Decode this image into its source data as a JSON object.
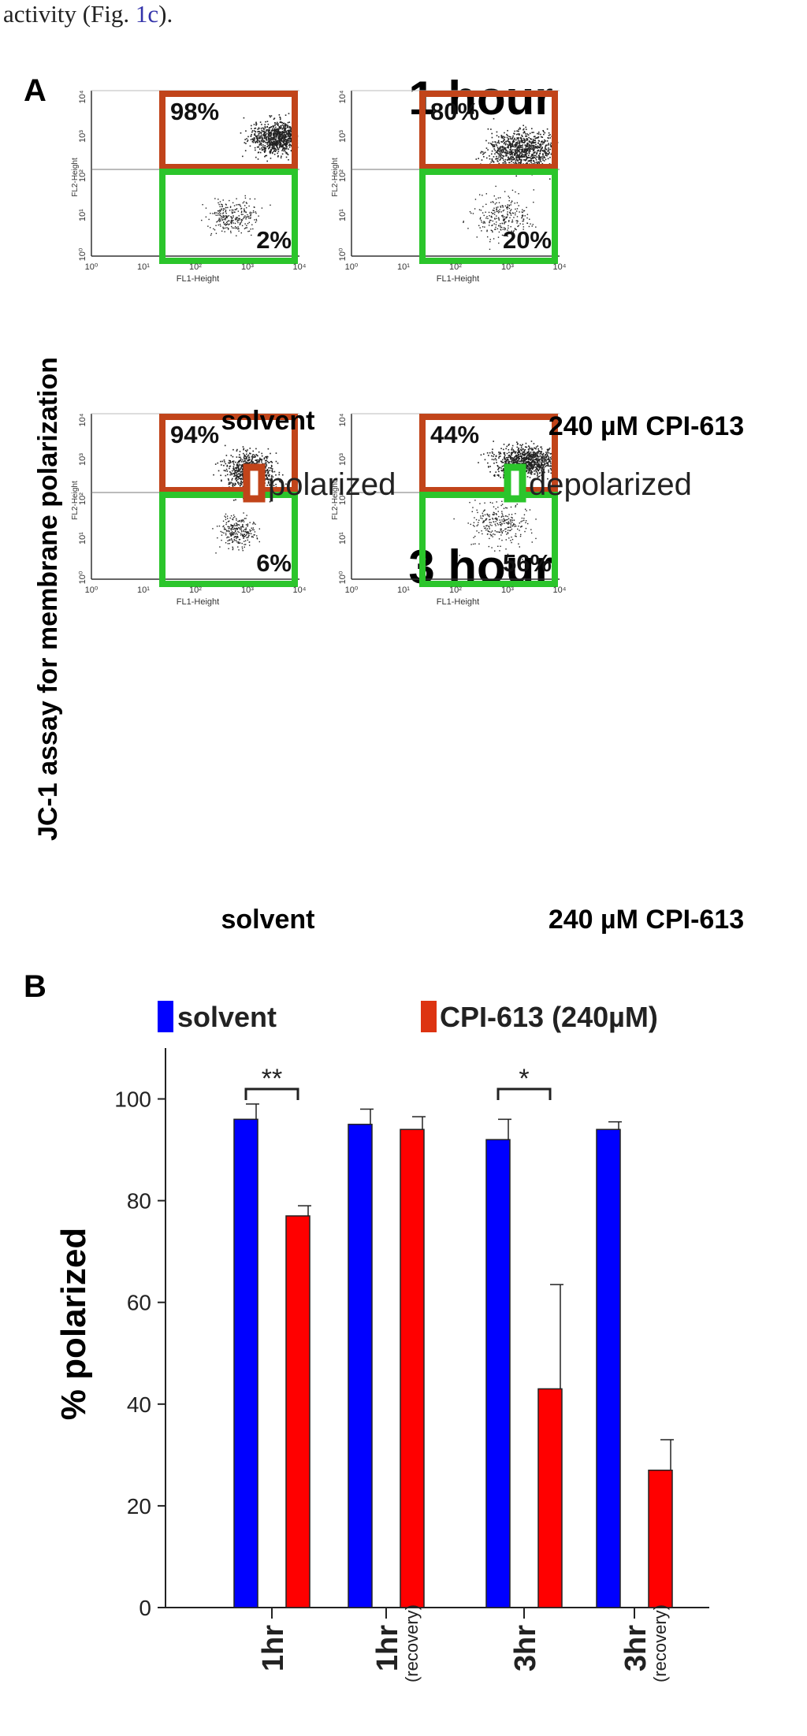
{
  "caption_fragment": {
    "text": "activity (Fig. ",
    "link": "1c",
    "tail": ")."
  },
  "panel_a": {
    "label": "A",
    "y_label": "JC-1 assay for membrane polarization",
    "colors": {
      "polarized_box": "#c1441a",
      "depolarized_box": "#2bc52b",
      "dots": "#222222"
    },
    "rows": [
      {
        "title": "1 hour",
        "plots": [
          {
            "condition": "solvent",
            "polarized": "98%",
            "depolarized": "2%",
            "x_axis_label": "FL1-Height",
            "y_axis_label": "FL2-Height",
            "x_ticks": [
              "10⁰",
              "10¹",
              "10²",
              "10³",
              "10⁴"
            ],
            "y_ticks": [
              "10⁴",
              "10³",
              "10²",
              "10¹",
              "10⁰"
            ]
          },
          {
            "condition": "240 µM CPI-613",
            "polarized": "80%",
            "depolarized": "20%",
            "x_axis_label": "FL1-Height",
            "y_axis_label": "FL2-Height",
            "x_ticks": [
              "10⁰",
              "10¹",
              "10²",
              "10³",
              "10⁴"
            ],
            "y_ticks": [
              "10⁴",
              "10³",
              "10²",
              "10¹",
              "10⁰"
            ]
          }
        ]
      },
      {
        "title": "3 hour",
        "plots": [
          {
            "condition": "solvent",
            "polarized": "94%",
            "depolarized": "6%",
            "x_axis_label": "FL1-Height",
            "y_axis_label": "FL2-Height",
            "x_ticks": [
              "10⁰",
              "10¹",
              "10²",
              "10³",
              "10⁴"
            ],
            "y_ticks": [
              "10⁴",
              "10³",
              "10²",
              "10¹",
              "10⁰"
            ]
          },
          {
            "condition": "240 µM CPI-613",
            "polarized": "44%",
            "depolarized": "56%",
            "x_axis_label": "FL1-Height",
            "y_axis_label": "FL2-Height",
            "x_ticks": [
              "10⁰",
              "10¹",
              "10²",
              "10³",
              "10⁴"
            ],
            "y_ticks": [
              "10⁴",
              "10³",
              "10²",
              "10¹",
              "10⁰"
            ]
          }
        ]
      }
    ],
    "legend": {
      "polarized": "polarized",
      "depolarized": "depolarized"
    }
  },
  "panel_b": {
    "label": "B",
    "legend": [
      {
        "name": "solvent",
        "color": "#0000ff"
      },
      {
        "name": "CPI-613 (240µM)",
        "color": "#ff0000"
      }
    ]
  },
  "chart_data": {
    "type": "bar",
    "categories": [
      "1hr",
      "1hr (recovery)",
      "3hr",
      "3hr (recovery)"
    ],
    "category_main": [
      "1hr",
      "1hr",
      "3hr",
      "3hr"
    ],
    "category_sub": [
      "",
      "(recovery)",
      "",
      "(recovery)"
    ],
    "series": [
      {
        "name": "solvent",
        "color": "#0000ff",
        "values": [
          96,
          95,
          92,
          94
        ],
        "errors": [
          3,
          3,
          4,
          1.5
        ]
      },
      {
        "name": "CPI-613 (240µM)",
        "color": "#ff0000",
        "values": [
          77,
          94,
          43,
          27
        ],
        "errors": [
          2,
          2.5,
          20.5,
          6
        ]
      }
    ],
    "ylabel": "% polarized",
    "xlabel": "",
    "ylim": [
      0,
      110
    ],
    "yticks": [
      0,
      20,
      40,
      60,
      80,
      100
    ],
    "significance": [
      {
        "category_index": 0,
        "label": "**"
      },
      {
        "category_index": 2,
        "label": "*"
      }
    ],
    "grid": false
  }
}
